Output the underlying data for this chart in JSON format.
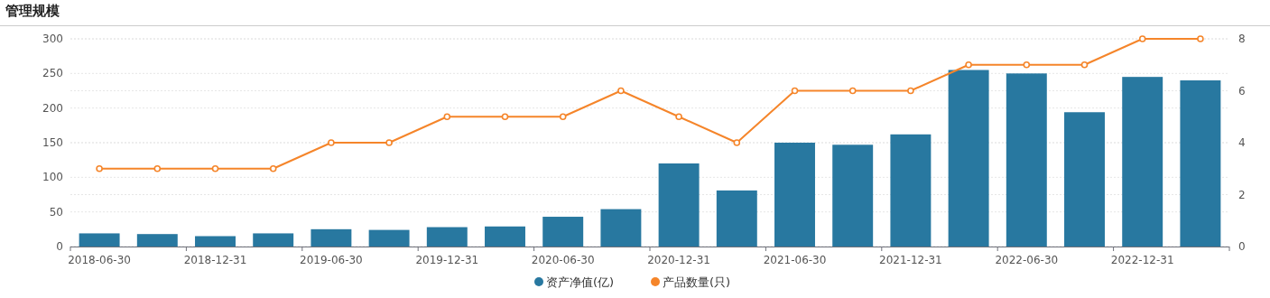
{
  "chart_data": {
    "type": "bar",
    "title": "管理规模",
    "categories": [
      "2018-06-30",
      null,
      "2018-12-31",
      null,
      "2019-06-30",
      null,
      "2019-12-31",
      null,
      "2020-06-30",
      null,
      "2020-12-31",
      null,
      "2021-06-30",
      null,
      "2021-12-31",
      null,
      "2022-06-30",
      null,
      "2022-12-31",
      null
    ],
    "series": [
      {
        "name": "资产净值(亿)",
        "color": "#2878a0",
        "values": [
          19,
          18,
          15,
          19,
          25,
          24,
          28,
          29,
          43,
          54,
          120,
          81,
          150,
          147,
          162,
          255,
          250,
          194,
          245,
          240
        ]
      },
      {
        "name": "产品数量(只)",
        "type": "line",
        "axis": "y2",
        "color": "#f5852a",
        "marker": "circle",
        "values": [
          3,
          3,
          3,
          3,
          4,
          4,
          5,
          5,
          5,
          6,
          5,
          4,
          6,
          6,
          6,
          7,
          7,
          7,
          8,
          8
        ]
      }
    ],
    "ylim": [
      0,
      300
    ],
    "yticks": [
      0,
      50,
      100,
      150,
      200,
      250,
      300
    ],
    "y2lim": [
      0,
      8
    ],
    "y2ticks": [
      0,
      2,
      4,
      6,
      8
    ],
    "grid": "y",
    "legend": "bottom"
  }
}
